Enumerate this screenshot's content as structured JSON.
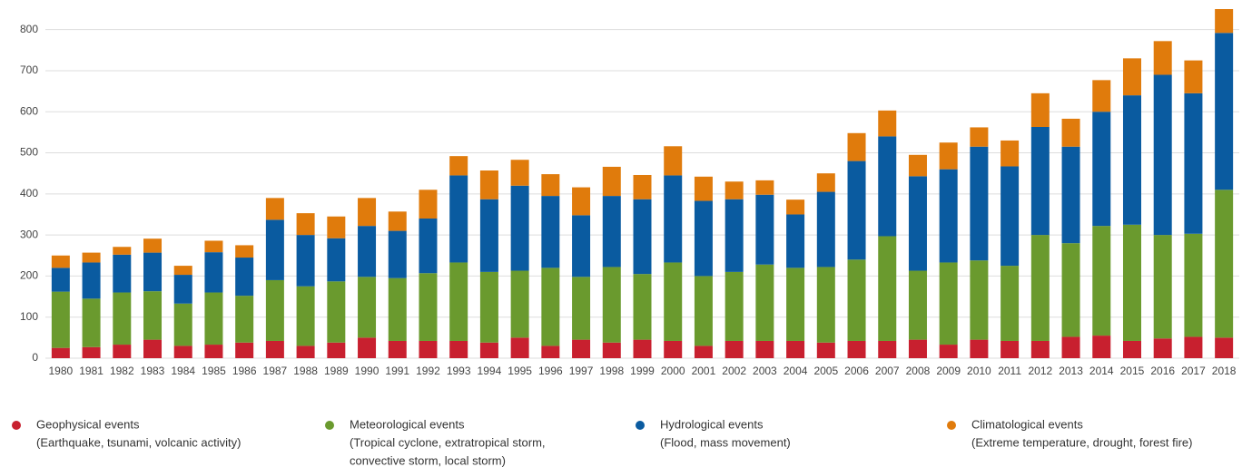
{
  "chart_data": {
    "type": "bar",
    "stacked": true,
    "categories": [
      "1980",
      "1981",
      "1982",
      "1983",
      "1984",
      "1985",
      "1986",
      "1987",
      "1988",
      "1989",
      "1990",
      "1991",
      "1992",
      "1993",
      "1994",
      "1995",
      "1996",
      "1997",
      "1998",
      "1999",
      "2000",
      "2001",
      "2002",
      "2003",
      "2004",
      "2005",
      "2006",
      "2007",
      "2008",
      "2009",
      "2010",
      "2011",
      "2012",
      "2013",
      "2014",
      "2015",
      "2016",
      "2017",
      "2018"
    ],
    "series": [
      {
        "name": "Geophysical events",
        "description": [
          "(Earthquake, tsunami, volcanic activity)"
        ],
        "color": "#c8202f",
        "values": [
          25,
          27,
          33,
          45,
          30,
          33,
          38,
          42,
          30,
          38,
          50,
          42,
          42,
          42,
          38,
          50,
          30,
          45,
          38,
          45,
          42,
          30,
          42,
          42,
          42,
          38,
          42,
          42,
          45,
          33,
          45,
          42,
          42,
          52,
          55,
          42,
          48,
          52,
          50
        ]
      },
      {
        "name": "Meteorological events",
        "description": [
          "(Tropical cyclone, extratropical storm,",
          "convective storm, local storm)"
        ],
        "color": "#6a9a2e",
        "values": [
          137,
          118,
          127,
          118,
          103,
          127,
          114,
          148,
          145,
          149,
          148,
          153,
          165,
          191,
          172,
          163,
          190,
          153,
          184,
          160,
          191,
          170,
          168,
          186,
          178,
          184,
          198,
          255,
          168,
          200,
          193,
          183,
          258,
          228,
          267,
          283,
          252,
          251,
          360
        ]
      },
      {
        "name": "Hydrological events",
        "description": [
          "(Flood, mass movement)"
        ],
        "color": "#0a5ba0",
        "values": [
          58,
          88,
          92,
          94,
          70,
          98,
          93,
          147,
          125,
          105,
          124,
          115,
          133,
          212,
          177,
          207,
          175,
          150,
          173,
          182,
          212,
          183,
          177,
          170,
          130,
          183,
          240,
          243,
          230,
          227,
          277,
          242,
          263,
          235,
          278,
          315,
          390,
          342,
          382
        ]
      },
      {
        "name": "Climatological events",
        "description": [
          "(Extreme temperature, drought, forest fire)"
        ],
        "color": "#e07b0c",
        "values": [
          30,
          24,
          19,
          34,
          22,
          28,
          30,
          53,
          53,
          53,
          68,
          47,
          70,
          47,
          70,
          63,
          53,
          68,
          71,
          59,
          71,
          59,
          43,
          35,
          36,
          45,
          68,
          63,
          52,
          65,
          47,
          63,
          82,
          68,
          77,
          90,
          82,
          80,
          58
        ]
      }
    ],
    "ylim": [
      0,
      850
    ],
    "yticks": [
      0,
      100,
      200,
      300,
      400,
      500,
      600,
      700,
      800
    ],
    "grid": true
  }
}
